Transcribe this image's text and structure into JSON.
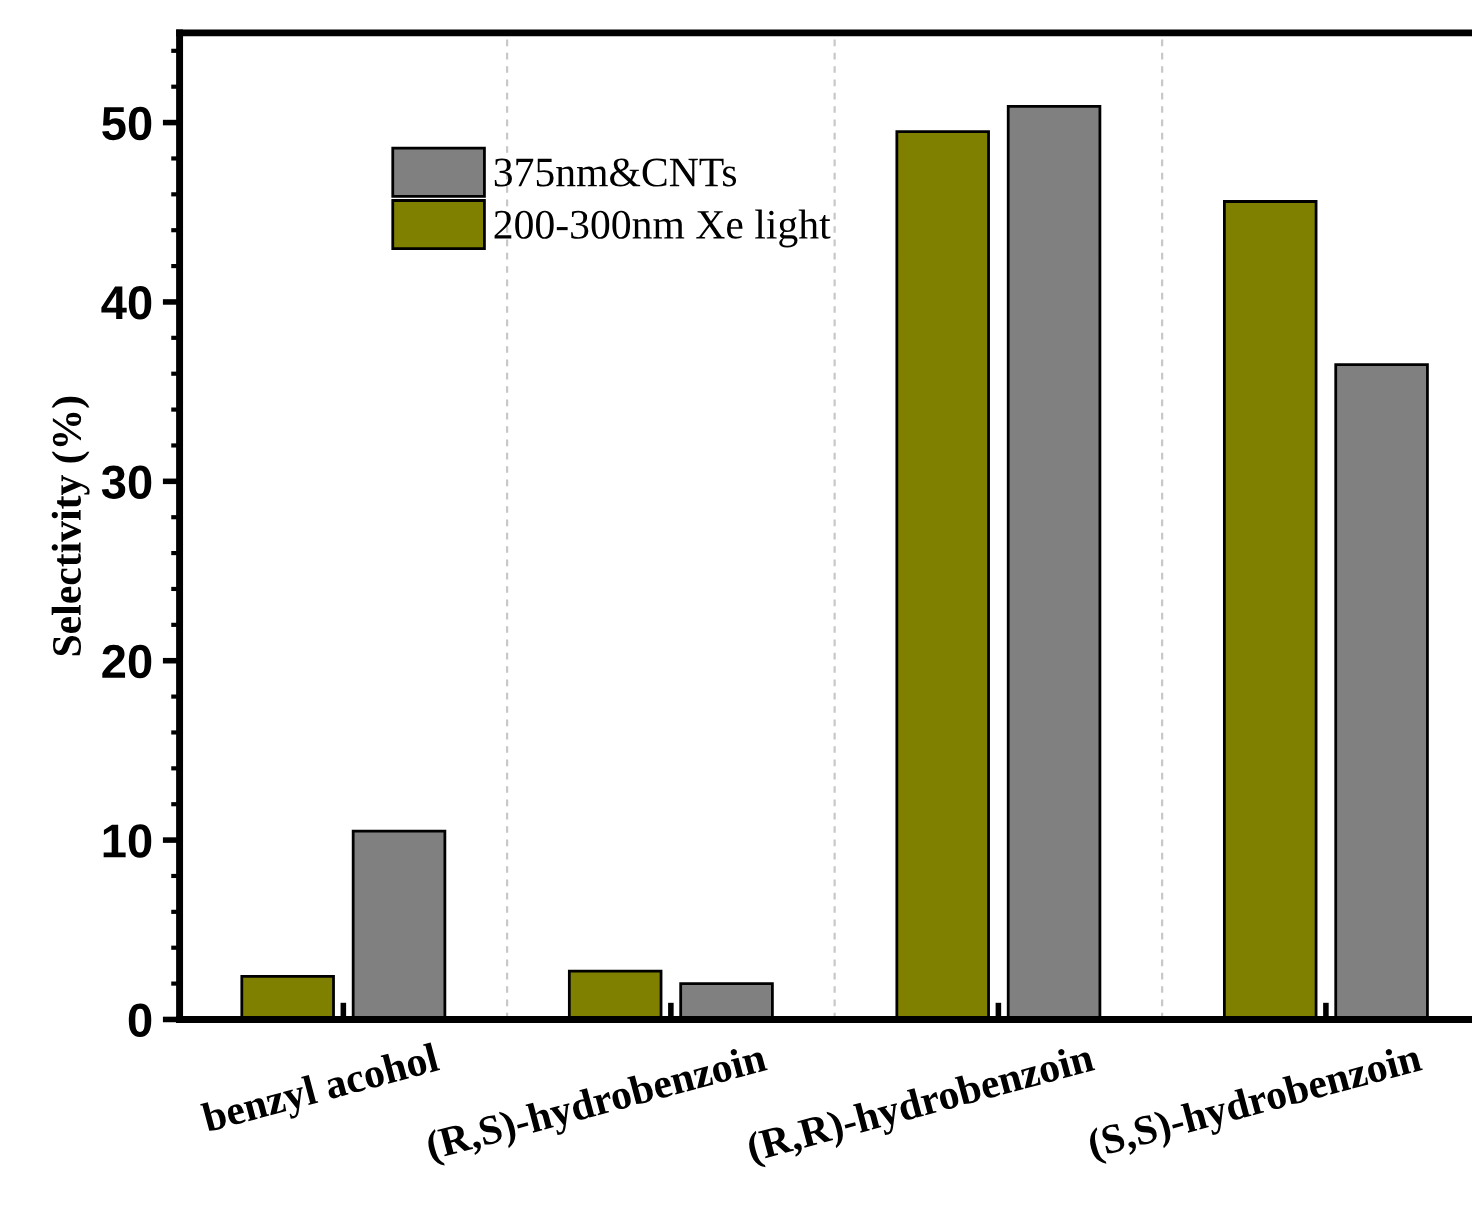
{
  "chart_data": {
    "type": "bar",
    "ylabel": "Selectivity (%)",
    "categories": [
      "benzyl acohol",
      "(R,S)-hydrobenzoin",
      "(R,R)-hydrobenzoin",
      "(S,S)-hydrobenzoin"
    ],
    "series": [
      {
        "name": "200-300nm Xe light",
        "color": "#808000",
        "values": [
          2.4,
          2.7,
          49.5,
          45.6
        ]
      },
      {
        "name": "375nm&CNTs",
        "color": "#808080",
        "values": [
          10.5,
          2.0,
          50.9,
          36.5
        ]
      }
    ],
    "ylim": [
      0,
      55
    ],
    "yticks": [
      0,
      10,
      20,
      30,
      40,
      50
    ],
    "grid": "x",
    "legend": "top left"
  }
}
